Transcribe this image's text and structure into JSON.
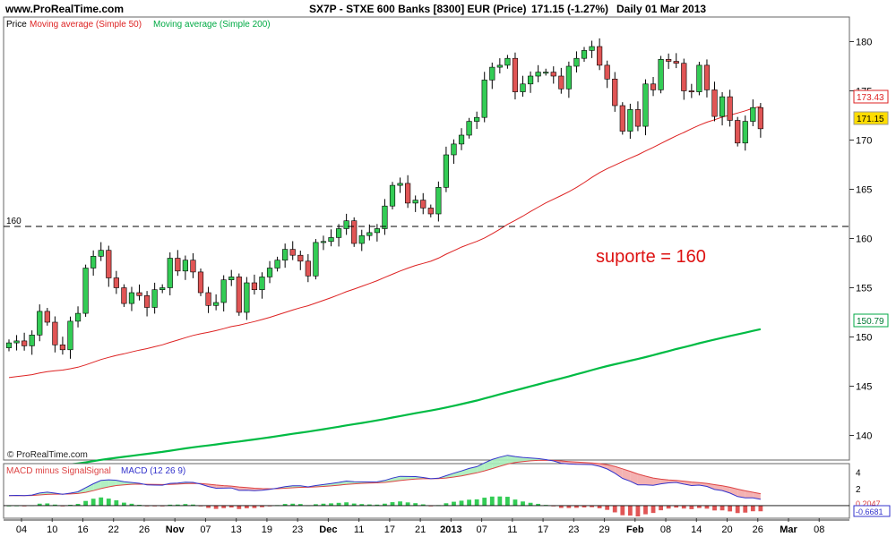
{
  "header": {
    "site": "www.ProRealTime.com",
    "instrument": "SX7P - STXE 600 Banks [8300] EUR (Price)",
    "last": "171.15 (-1.27%)",
    "period": "Daily  01 Mar 2013"
  },
  "legend": {
    "price": "Price",
    "ma50": "Moving average (Simple 50)",
    "ma200": "Moving average (Simple 200)"
  },
  "watermark": "© ProRealTime.com",
  "annotation": "suporte = 160",
  "colors": {
    "up": "#33cc55",
    "down": "#e05555",
    "ma50": "#dd2222",
    "ma200": "#00bb44",
    "macd": "#3333cc",
    "signal": "#dd4444",
    "support_line": "#000000",
    "last_badge": "#ffdd00"
  },
  "chart_data": [
    {
      "type": "candlestick",
      "title": "SX7P - STXE 600 Banks [8300] EUR (Price)",
      "ylim": [
        137.5,
        182.5
      ],
      "yticks": [
        140,
        145,
        150,
        155,
        160,
        165,
        170,
        175,
        180
      ],
      "x_labels": [
        "04",
        "10",
        "16",
        "22",
        "26",
        "Nov",
        "07",
        "13",
        "19",
        "23",
        "Dec",
        "11",
        "17",
        "21",
        "2013",
        "07",
        "11",
        "17",
        "23",
        "29",
        "Feb",
        "08",
        "14",
        "20",
        "26",
        "Mar",
        "08"
      ],
      "x_label_positions": [
        0,
        4,
        8,
        12,
        16,
        20,
        24,
        28,
        32,
        36,
        40,
        44,
        48,
        52,
        56,
        60,
        64,
        68,
        72,
        76,
        80,
        84,
        88,
        92,
        96,
        100,
        104
      ],
      "reference_line": {
        "value": 160,
        "label": "160",
        "style": "dashed"
      },
      "labels": {
        "ma50_last": "173.43",
        "last_price": "171.15",
        "ma200_last": "150.79"
      },
      "ma50_last": 173.43,
      "ma200_last": 150.79,
      "last_price": 171.15,
      "close": [
        149.4,
        149.6,
        149.1,
        150.2,
        152.6,
        151.5,
        149.2,
        148.7,
        151.6,
        152.4,
        157.0,
        158.2,
        158.8,
        156.0,
        155.0,
        153.4,
        154.5,
        154.2,
        153.0,
        154.8,
        155.0,
        158.0,
        156.7,
        157.8,
        156.6,
        154.5,
        153.2,
        153.5,
        155.8,
        156.1,
        152.5,
        155.5,
        154.8,
        156.1,
        157.0,
        157.8,
        158.9,
        158.3,
        157.7,
        156.2,
        159.6,
        159.7,
        160.1,
        161.0,
        161.8,
        159.5,
        160.3,
        160.6,
        161.0,
        163.3,
        165.4,
        165.6,
        163.6,
        163.9,
        163.1,
        162.5,
        165.2,
        168.5,
        169.6,
        170.5,
        171.9,
        172.3,
        176.1,
        177.4,
        177.6,
        178.3,
        174.9,
        175.7,
        176.5,
        176.9,
        176.9,
        176.5,
        175.2,
        177.5,
        178.3,
        179.1,
        179.5,
        177.6,
        176.2,
        173.5,
        170.9,
        173.1,
        171.4,
        175.7,
        175.1,
        178.2,
        178.0,
        177.8,
        175.0,
        174.9,
        177.6,
        175.1,
        172.4,
        174.4,
        172.0,
        169.7,
        171.9,
        173.3,
        171.15
      ],
      "open": [
        148.9,
        149.4,
        149.6,
        149.1,
        150.2,
        152.6,
        151.5,
        149.2,
        148.7,
        151.6,
        152.4,
        157.0,
        158.2,
        158.8,
        156.0,
        155.0,
        153.4,
        154.5,
        154.2,
        153.0,
        154.8,
        155.0,
        158.0,
        156.7,
        157.8,
        156.6,
        154.5,
        153.2,
        153.5,
        155.8,
        156.1,
        152.5,
        155.5,
        154.8,
        156.1,
        157.0,
        157.8,
        158.9,
        158.3,
        157.7,
        156.2,
        159.6,
        159.7,
        160.1,
        161.0,
        161.8,
        159.5,
        160.3,
        160.6,
        161.0,
        163.3,
        165.4,
        165.6,
        163.6,
        163.9,
        163.1,
        162.5,
        165.2,
        168.5,
        169.6,
        170.5,
        171.9,
        172.3,
        176.1,
        177.4,
        177.6,
        178.3,
        174.9,
        175.7,
        176.5,
        176.9,
        176.9,
        176.5,
        175.2,
        177.5,
        178.3,
        179.1,
        179.5,
        177.6,
        176.2,
        173.5,
        170.9,
        173.1,
        171.4,
        175.7,
        175.1,
        178.2,
        178.0,
        177.8,
        175.0,
        174.9,
        177.6,
        175.1,
        172.4,
        174.4,
        172.0,
        169.7,
        171.9,
        173.3
      ]
    },
    {
      "type": "line",
      "title": "MACD minus Signal Signal MACD (12 26 9)",
      "legend": [
        "MACD minus Signal",
        "Signal",
        "MACD (12 26 9)"
      ],
      "ylim": [
        -1.5,
        5.0
      ],
      "yticks": [
        2,
        4
      ],
      "labels": {
        "signal_last": "0.2047",
        "macd_last": "-0.6681"
      },
      "signal_last": 0.2047,
      "macd_last": -0.6681
    }
  ]
}
